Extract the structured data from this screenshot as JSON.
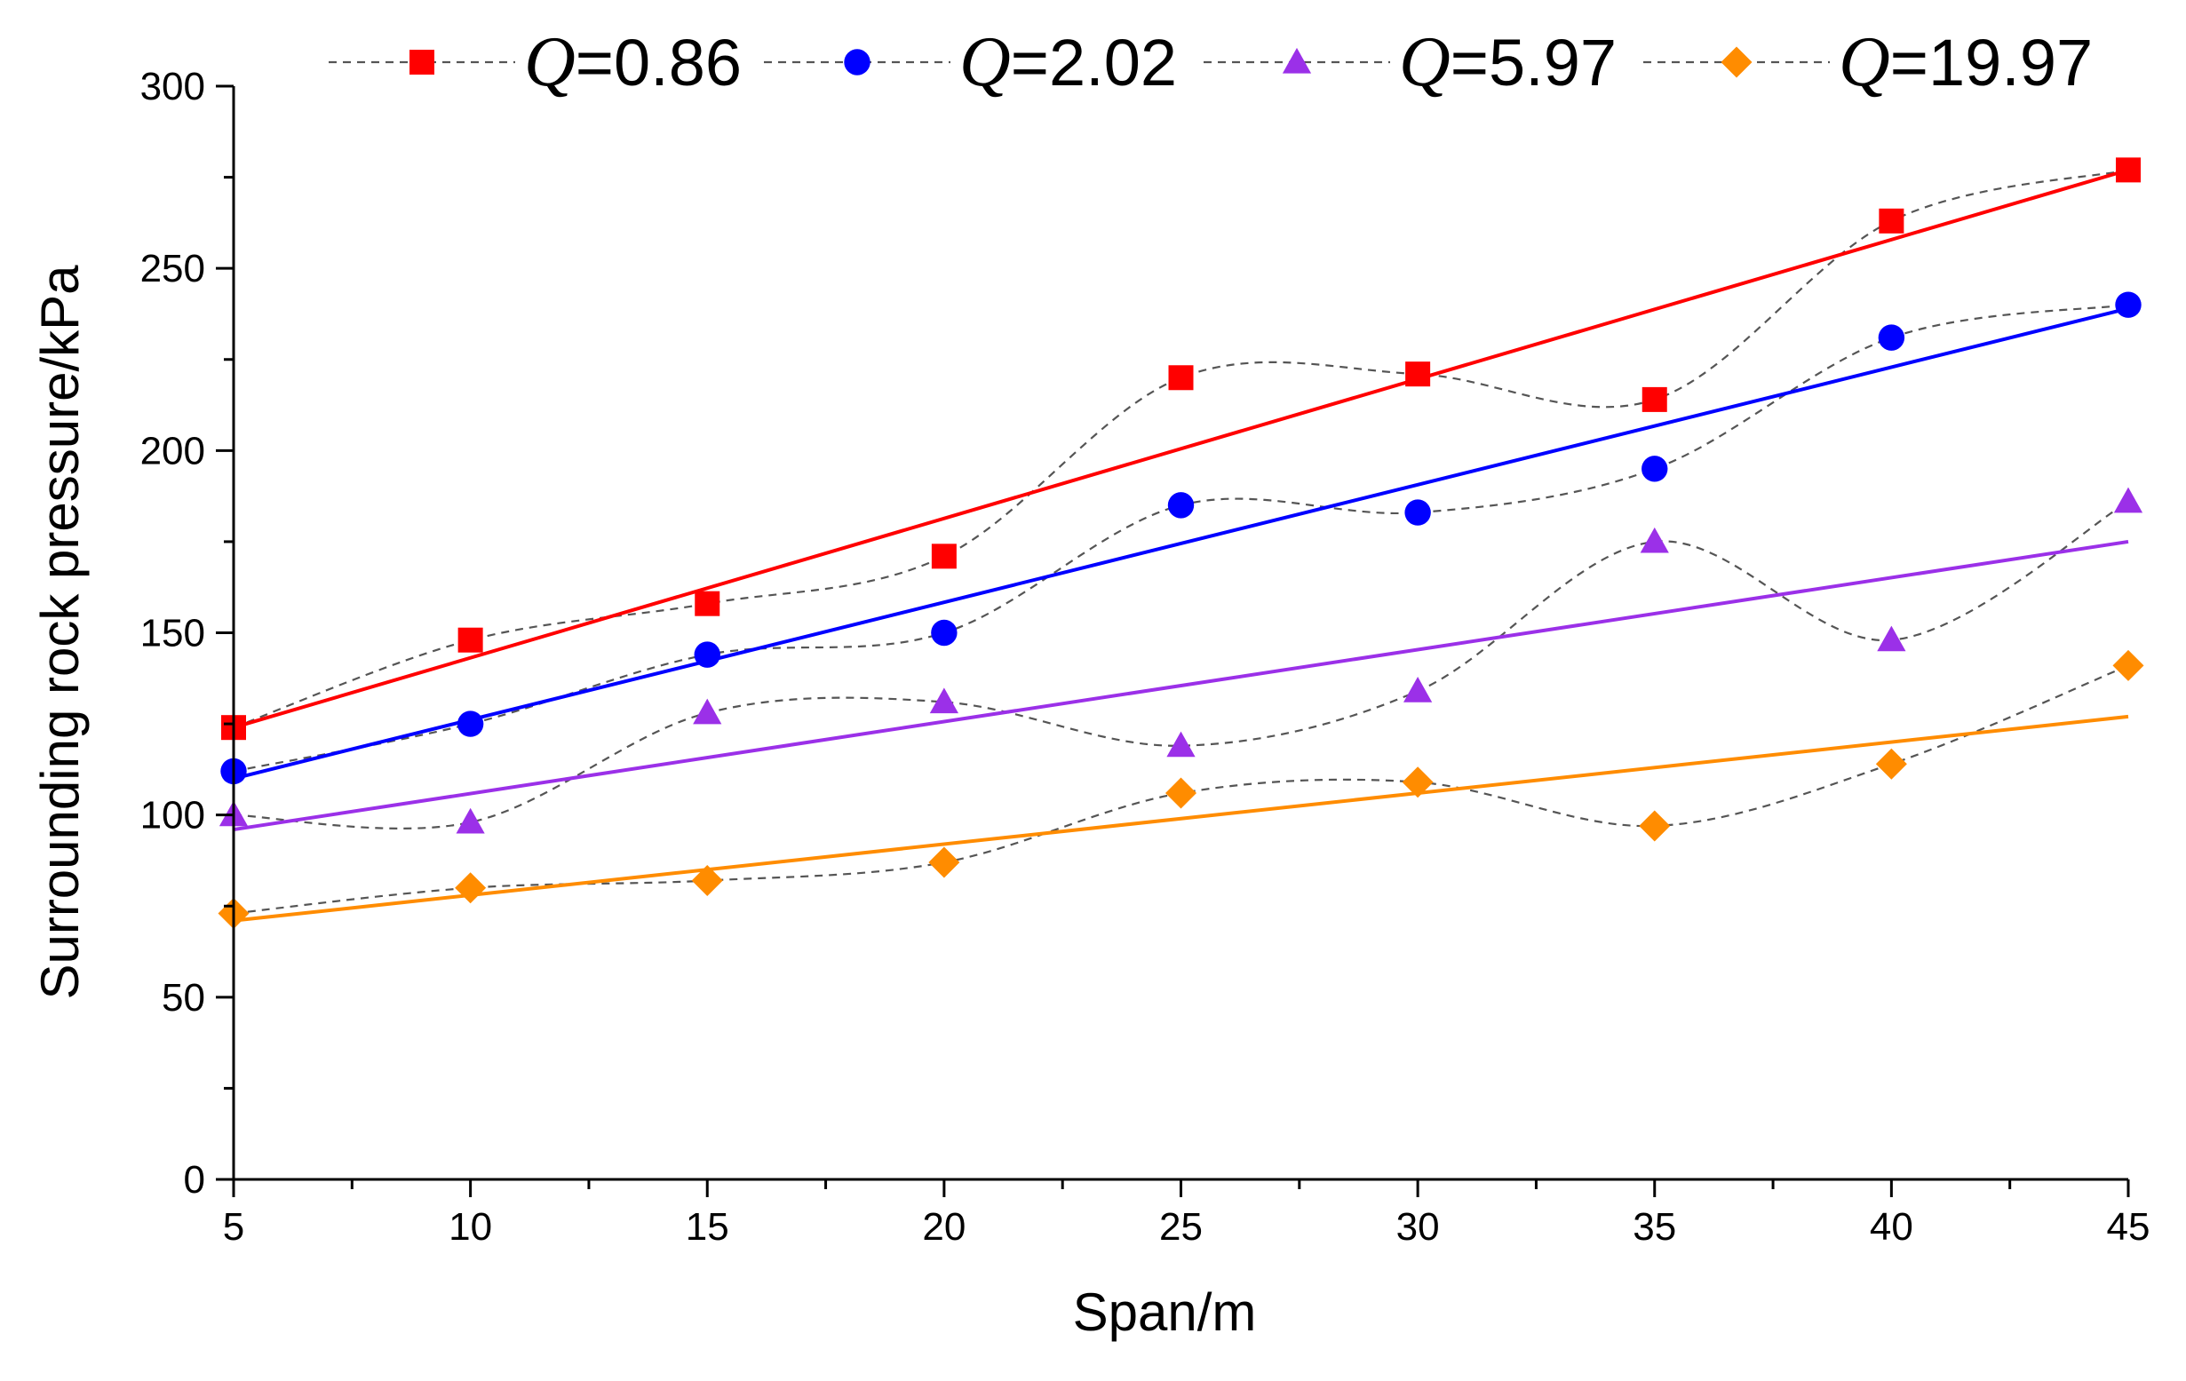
{
  "chart_data": {
    "type": "line",
    "title": "",
    "xlabel": "Span/m",
    "ylabel": "Surrounding rock pressure/kPa",
    "x": [
      5,
      10,
      15,
      20,
      25,
      30,
      35,
      40,
      45
    ],
    "xlim": [
      5,
      45
    ],
    "ylim": [
      0,
      300
    ],
    "x_ticks": [
      5,
      10,
      15,
      20,
      25,
      30,
      35,
      40,
      45
    ],
    "y_ticks": [
      0,
      50,
      100,
      150,
      200,
      250,
      300
    ],
    "grid": false,
    "legend_position": "top",
    "series": [
      {
        "name": "Q=0.86",
        "legend_var": "Q",
        "legend_value": "=0.86",
        "marker": "square",
        "color": "#ff0000",
        "values": [
          124,
          148,
          158,
          171,
          220,
          221,
          214,
          263,
          277
        ],
        "fit": [
          124,
          277
        ]
      },
      {
        "name": "Q=2.02",
        "legend_var": "Q",
        "legend_value": "=2.02",
        "marker": "circle",
        "color": "#0000ff",
        "values": [
          112,
          125,
          144,
          150,
          185,
          183,
          195,
          231,
          240
        ],
        "fit": [
          110,
          239
        ]
      },
      {
        "name": "Q=5.97",
        "legend_var": "Q",
        "legend_value": "=5.97",
        "marker": "triangle",
        "color": "#9b30e8",
        "values": [
          100,
          98,
          128,
          131,
          119,
          134,
          175,
          148,
          186
        ],
        "fit": [
          96,
          175
        ]
      },
      {
        "name": "Q=19.97",
        "legend_var": "Q",
        "legend_value": "=19.97",
        "marker": "diamond",
        "color": "#ff8c00",
        "values": [
          73,
          80,
          82,
          87,
          106,
          109,
          97,
          114,
          141
        ],
        "fit": [
          71,
          127
        ]
      }
    ]
  }
}
